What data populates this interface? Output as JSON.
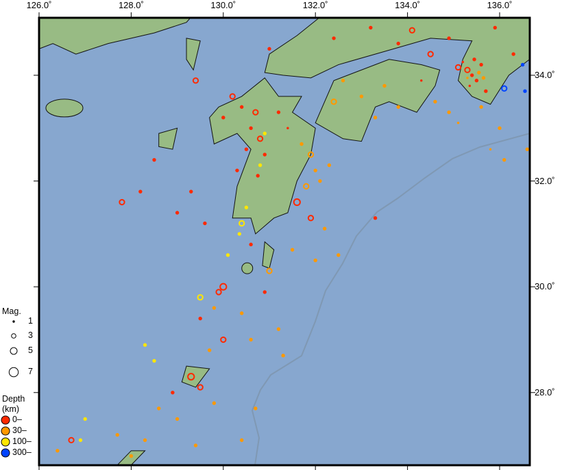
{
  "axes": {
    "top_ticks": [
      "126.0˚",
      "128.0˚",
      "130.0˚",
      "132.0˚",
      "134.0˚",
      "136.0˚"
    ],
    "top_lons": [
      126,
      128,
      130,
      132,
      134,
      136
    ],
    "right_ticks": [
      "34.0˚",
      "32.0˚",
      "30.0˚",
      "28.0˚"
    ],
    "right_lats": [
      34,
      32,
      30,
      28
    ],
    "lon_range": [
      126,
      136.65
    ],
    "lat_range": [
      26.63,
      35.09
    ]
  },
  "colors": {
    "sea": "#87a7cf",
    "land": "#98bb84",
    "trench": "#7f98b3",
    "depth_0": "#ff2a00",
    "depth_30": "#ff9900",
    "depth_100": "#ffe600",
    "depth_300": "#0044ff"
  },
  "legend": {
    "mag_title": "Mag.",
    "mag_items": [
      {
        "label": "1",
        "mag": 1
      },
      {
        "label": "3",
        "mag": 3
      },
      {
        "label": "5",
        "mag": 5
      },
      {
        "label": "7",
        "mag": 7
      }
    ],
    "depth_title": "Depth",
    "depth_unit": "(km)",
    "depth_items": [
      {
        "label": "0–",
        "color": "#ff2a00"
      },
      {
        "label": "30–",
        "color": "#ff9900"
      },
      {
        "label": "100–",
        "color": "#ffe600"
      },
      {
        "label": "300–",
        "color": "#0044ff"
      }
    ]
  },
  "events": [
    [
      135.3,
      34.1,
      10,
      3
    ],
    [
      135.4,
      34.0,
      10,
      2
    ],
    [
      135.5,
      33.9,
      10,
      2
    ],
    [
      135.35,
      33.8,
      10,
      1
    ],
    [
      135.6,
      34.2,
      10,
      2
    ],
    [
      135.2,
      34.25,
      10,
      1
    ],
    [
      135.7,
      33.7,
      10,
      2
    ],
    [
      135.45,
      34.3,
      10,
      2
    ],
    [
      135.1,
      34.15,
      10,
      3
    ],
    [
      135.55,
      34.05,
      40,
      2
    ],
    [
      135.3,
      33.95,
      40,
      1
    ],
    [
      135.65,
      33.95,
      40,
      2
    ],
    [
      136.1,
      33.75,
      350,
      3
    ],
    [
      136.55,
      33.7,
      350,
      2
    ],
    [
      136.5,
      34.2,
      350,
      2
    ],
    [
      136.3,
      34.4,
      10,
      2
    ],
    [
      134.5,
      34.4,
      10,
      3
    ],
    [
      133.8,
      34.6,
      10,
      2
    ],
    [
      133.2,
      34.9,
      10,
      2
    ],
    [
      132.4,
      34.7,
      10,
      2
    ],
    [
      134.9,
      34.7,
      10,
      2
    ],
    [
      135.9,
      34.9,
      10,
      2
    ],
    [
      134.1,
      34.85,
      10,
      3
    ],
    [
      133.5,
      33.8,
      40,
      2
    ],
    [
      133.0,
      33.6,
      40,
      2
    ],
    [
      132.6,
      33.9,
      40,
      2
    ],
    [
      132.4,
      33.5,
      40,
      3
    ],
    [
      133.8,
      33.4,
      40,
      2
    ],
    [
      134.3,
      33.9,
      10,
      1
    ],
    [
      134.6,
      33.5,
      40,
      2
    ],
    [
      133.3,
      33.2,
      40,
      2
    ],
    [
      134.9,
      33.3,
      40,
      2
    ],
    [
      135.1,
      33.1,
      40,
      1
    ],
    [
      136.0,
      33.0,
      40,
      2
    ],
    [
      135.8,
      32.6,
      40,
      1
    ],
    [
      130.7,
      33.3,
      10,
      3
    ],
    [
      130.6,
      33.0,
      10,
      2
    ],
    [
      130.8,
      32.8,
      10,
      3
    ],
    [
      130.5,
      32.6,
      10,
      2
    ],
    [
      130.9,
      32.5,
      10,
      2
    ],
    [
      130.4,
      33.4,
      10,
      2
    ],
    [
      130.2,
      33.6,
      10,
      3
    ],
    [
      130.0,
      33.2,
      10,
      2
    ],
    [
      130.75,
      32.1,
      10,
      2
    ],
    [
      131.2,
      33.3,
      10,
      2
    ],
    [
      131.4,
      33.0,
      10,
      1
    ],
    [
      130.3,
      32.2,
      10,
      2
    ],
    [
      131.9,
      32.5,
      40,
      3
    ],
    [
      132.0,
      32.2,
      40,
      2
    ],
    [
      131.8,
      31.9,
      40,
      3
    ],
    [
      132.1,
      32.0,
      40,
      2
    ],
    [
      131.7,
      32.7,
      40,
      2
    ],
    [
      132.3,
      32.3,
      40,
      2
    ],
    [
      131.6,
      31.6,
      10,
      4
    ],
    [
      131.9,
      31.3,
      10,
      3
    ],
    [
      132.2,
      31.1,
      40,
      2
    ],
    [
      130.4,
      31.2,
      120,
      3
    ],
    [
      130.35,
      31.0,
      120,
      2
    ],
    [
      130.5,
      31.5,
      120,
      2
    ],
    [
      130.8,
      32.3,
      120,
      2
    ],
    [
      130.9,
      32.9,
      120,
      2
    ],
    [
      130.1,
      30.6,
      120,
      2
    ],
    [
      129.5,
      29.8,
      120,
      3
    ],
    [
      128.3,
      28.9,
      120,
      2
    ],
    [
      128.5,
      28.6,
      120,
      2
    ],
    [
      127.0,
      27.5,
      120,
      2
    ],
    [
      126.9,
      27.1,
      120,
      2
    ],
    [
      128.5,
      32.4,
      10,
      2
    ],
    [
      128.2,
      31.8,
      10,
      2
    ],
    [
      127.8,
      31.6,
      10,
      3
    ],
    [
      129.0,
      31.4,
      10,
      2
    ],
    [
      129.3,
      31.8,
      10,
      2
    ],
    [
      129.6,
      31.2,
      10,
      2
    ],
    [
      130.6,
      30.8,
      10,
      2
    ],
    [
      131.0,
      30.3,
      40,
      3
    ],
    [
      130.9,
      29.9,
      10,
      2
    ],
    [
      130.0,
      30.0,
      10,
      4
    ],
    [
      129.9,
      29.9,
      10,
      3
    ],
    [
      129.5,
      29.4,
      10,
      2
    ],
    [
      129.8,
      29.6,
      40,
      2
    ],
    [
      130.4,
      29.5,
      40,
      2
    ],
    [
      130.6,
      29.0,
      40,
      2
    ],
    [
      131.2,
      29.2,
      40,
      2
    ],
    [
      130.0,
      29.0,
      10,
      3
    ],
    [
      129.7,
      28.8,
      40,
      2
    ],
    [
      129.3,
      28.3,
      10,
      4
    ],
    [
      129.5,
      28.1,
      10,
      3
    ],
    [
      128.9,
      28.0,
      10,
      2
    ],
    [
      128.6,
      27.7,
      40,
      2
    ],
    [
      129.0,
      27.5,
      40,
      2
    ],
    [
      129.8,
      27.8,
      40,
      2
    ],
    [
      129.4,
      27.0,
      40,
      2
    ],
    [
      128.3,
      27.1,
      40,
      2
    ],
    [
      127.7,
      27.2,
      40,
      2
    ],
    [
      128.0,
      26.8,
      40,
      2
    ],
    [
      126.7,
      27.1,
      10,
      3
    ],
    [
      126.4,
      26.9,
      40,
      2
    ],
    [
      131.5,
      30.7,
      40,
      2
    ],
    [
      132.0,
      30.5,
      40,
      2
    ],
    [
      132.5,
      30.6,
      40,
      2
    ],
    [
      131.3,
      28.7,
      40,
      2
    ],
    [
      130.7,
      27.7,
      40,
      2
    ],
    [
      130.4,
      27.1,
      40,
      2
    ],
    [
      136.1,
      32.4,
      40,
      2
    ],
    [
      136.6,
      32.6,
      40,
      2
    ],
    [
      135.6,
      33.4,
      40,
      2
    ],
    [
      133.3,
      31.3,
      10,
      2
    ],
    [
      131.0,
      34.5,
      10,
      2
    ],
    [
      129.4,
      33.9,
      10,
      3
    ]
  ]
}
